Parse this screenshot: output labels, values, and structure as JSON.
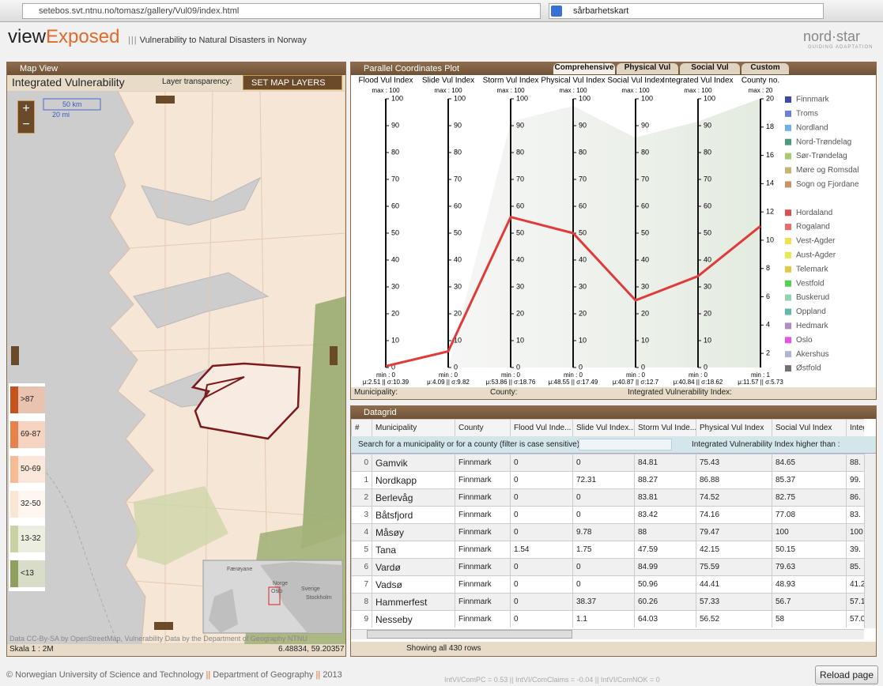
{
  "browser": {
    "url": "setebos.svt.ntnu.no/tomasz/gallery/Vul09/index.html",
    "search": "sårbarhetskart"
  },
  "header": {
    "logo_view": "view",
    "logo_exposed": "Exposed",
    "subtitle": "Vulnerability to Natural Disasters in Norway",
    "brand": "nord·star",
    "brand_tagline": "GUIDING ADAPTATION"
  },
  "map_panel": {
    "title": "Map View",
    "layer_name": "Integrated Vulnerability",
    "transparency": "Layer transparency:",
    "set_layers": "SET MAP LAYERS",
    "zoom_in": "+",
    "zoom_out": "−",
    "scale_km": "50 km",
    "scale_mi": "20 mi",
    "legend": [
      {
        "label": ">87",
        "color": "#c4531c"
      },
      {
        "label": "69-87",
        "color": "#e8824c"
      },
      {
        "label": "50-69",
        "color": "#f6bb94"
      },
      {
        "label": "32-50",
        "color": "#fbe6d2"
      },
      {
        "label": "13-32",
        "color": "#c9d2a2"
      },
      {
        "label": "<13",
        "color": "#8f9f5e"
      }
    ],
    "inset_labels": [
      "Færøyane",
      "Norge",
      "Oslo",
      "Sverige",
      "Stockholm"
    ],
    "attribution": "Data CC-By-SA by OpenStreetMap, Vulnerability Data by the Department of Geography NTNU",
    "scale": "Skala 1 : 2M",
    "coordinates": "6.48834, 59.20357"
  },
  "parallel_plot": {
    "title": "Parallel Coordinates Plot",
    "tabs": [
      "Comprehensive",
      "Physical Vul",
      "Social Vul",
      "Custom"
    ],
    "axes": [
      {
        "name": "Flood Vul Index",
        "max_label": "max : 100",
        "min_label": "min : 0",
        "stats": "μ:2.51 || σ:10.39",
        "ylim": [
          0,
          100
        ],
        "yticks": [
          0,
          10,
          20,
          30,
          40,
          50,
          60,
          70,
          80,
          90,
          100
        ]
      },
      {
        "name": "Slide Vul Index",
        "max_label": "max : 100",
        "min_label": "min : 0",
        "stats": "μ:4.09 || σ:9.82",
        "ylim": [
          0,
          100
        ],
        "yticks": [
          0,
          10,
          20,
          30,
          40,
          50,
          60,
          70,
          80,
          90,
          100
        ]
      },
      {
        "name": "Storm Vul Index",
        "max_label": "max : 100",
        "min_label": "min : 0",
        "stats": "μ:53.86 || σ:18.76",
        "ylim": [
          0,
          100
        ],
        "yticks": [
          0,
          10,
          20,
          30,
          40,
          50,
          60,
          70,
          80,
          90,
          100
        ]
      },
      {
        "name": "Physical Vul Index",
        "max_label": "max : 100",
        "min_label": "min : 0",
        "stats": "μ:48.55 || σ:17.49",
        "ylim": [
          0,
          100
        ],
        "yticks": [
          0,
          10,
          20,
          30,
          40,
          50,
          60,
          70,
          80,
          90,
          100
        ]
      },
      {
        "name": "Social Vul Index",
        "max_label": "max : 100",
        "min_label": "min : 0",
        "stats": "μ:40.87 || σ:12.7",
        "ylim": [
          0,
          100
        ],
        "yticks": [
          0,
          10,
          20,
          30,
          40,
          50,
          60,
          70,
          80,
          90,
          100
        ]
      },
      {
        "name": "Integrated Vul Index",
        "max_label": "max : 100",
        "min_label": "min : 0",
        "stats": "μ:40.84 || σ:18.62",
        "ylim": [
          0,
          100
        ],
        "yticks": [
          0,
          10,
          20,
          30,
          40,
          50,
          60,
          70,
          80,
          90,
          100
        ]
      },
      {
        "name": "County no.",
        "max_label": "max : 20",
        "min_label": "min : 1",
        "stats": "μ:11.57 || σ:5.73",
        "ylim": [
          1,
          20
        ],
        "yticks": [
          2,
          4,
          6,
          8,
          10,
          12,
          14,
          16,
          18,
          20
        ]
      }
    ],
    "highlight": {
      "color": "#e03a3a",
      "values": [
        0.5,
        6,
        56,
        50,
        25,
        34,
        11
      ]
    },
    "legend_groups": [
      [
        {
          "name": "Finnmark",
          "color": "#3b4aa3"
        },
        {
          "name": "Troms",
          "color": "#6b80d9"
        },
        {
          "name": "Nordland",
          "color": "#6cb2ea"
        },
        {
          "name": "Nord-Trøndelag",
          "color": "#4c9c7c"
        },
        {
          "name": "Sør-Trøndelag",
          "color": "#a9c972"
        },
        {
          "name": "Møre og Romsdal",
          "color": "#c9b273"
        },
        {
          "name": "Sogn og Fjordane",
          "color": "#c99262"
        }
      ],
      [
        {
          "name": "Hordaland",
          "color": "#d94f4f"
        },
        {
          "name": "Rogaland",
          "color": "#ea6b6b"
        },
        {
          "name": "Vest-Agder",
          "color": "#f1e152"
        },
        {
          "name": "Aust-Agder",
          "color": "#e8e84f"
        },
        {
          "name": "Telemark",
          "color": "#e1c943"
        },
        {
          "name": "Vestfold",
          "color": "#52d152"
        },
        {
          "name": "Buskerud",
          "color": "#92d1b2"
        },
        {
          "name": "Oppland",
          "color": "#61b9a9"
        },
        {
          "name": "Hedmark",
          "color": "#b18ac9"
        },
        {
          "name": "Oslo",
          "color": "#e951e9"
        },
        {
          "name": "Akershus",
          "color": "#b2b2d9"
        },
        {
          "name": "Østfold",
          "color": "#717171"
        }
      ]
    ],
    "footer": {
      "municipality": "Municipality:",
      "county": "County:",
      "integrated": "Integrated Vulnerability Index:"
    }
  },
  "datagrid": {
    "title": "Datagrid",
    "columns": [
      "#",
      "Municipality",
      "County",
      "Flood Vul Inde...",
      "Slide Vul Index...",
      "Storm Vul Inde...",
      "Physical Vul Index",
      "Social Vul Index",
      "Integra"
    ],
    "search_label": "Search for a municipality or for a county (filter is case sensitive):",
    "threshold_label": "Integrated Vulnerability Index higher than :",
    "rows": [
      [
        "0",
        "Gamvik",
        "Finnmark",
        "0",
        "0",
        "84.81",
        "75.43",
        "84.65",
        "88."
      ],
      [
        "1",
        "Nordkapp",
        "Finnmark",
        "0",
        "72.31",
        "88.27",
        "86.88",
        "85.37",
        "99."
      ],
      [
        "2",
        "Berlevåg",
        "Finnmark",
        "0",
        "0",
        "83.81",
        "74.52",
        "82.75",
        "86."
      ],
      [
        "3",
        "Båtsfjord",
        "Finnmark",
        "0",
        "0",
        "83.42",
        "74.16",
        "77.08",
        "83."
      ],
      [
        "4",
        "Måsøy",
        "Finnmark",
        "0",
        "9.78",
        "88",
        "79.47",
        "100",
        "100"
      ],
      [
        "5",
        "Tana",
        "Finnmark",
        "1.54",
        "1.75",
        "47.59",
        "42.15",
        "50.15",
        "39."
      ],
      [
        "6",
        "Vardø",
        "Finnmark",
        "0",
        "0",
        "84.99",
        "75.59",
        "79.63",
        "85."
      ],
      [
        "7",
        "Vadsø",
        "Finnmark",
        "0",
        "0",
        "50.96",
        "44.41",
        "48.93",
        "41.2"
      ],
      [
        "8",
        "Hammerfest",
        "Finnmark",
        "0",
        "38.37",
        "60.26",
        "57.33",
        "56.7",
        "57.1"
      ],
      [
        "9",
        "Nesseby",
        "Finnmark",
        "0",
        "1.1",
        "64.03",
        "56.52",
        "58",
        "57.0"
      ]
    ],
    "status": "Showing all 430 rows"
  },
  "footer": {
    "org": "© Norwegian University of Science and Technology",
    "separator": "||",
    "dept": "Department of Geography",
    "year": "2013",
    "stats": "IntVI/ComPC = 0.53 || IntVI/ComClaims = -0.04 || IntVI/ComNOK = 0",
    "reload": "Reload page"
  }
}
